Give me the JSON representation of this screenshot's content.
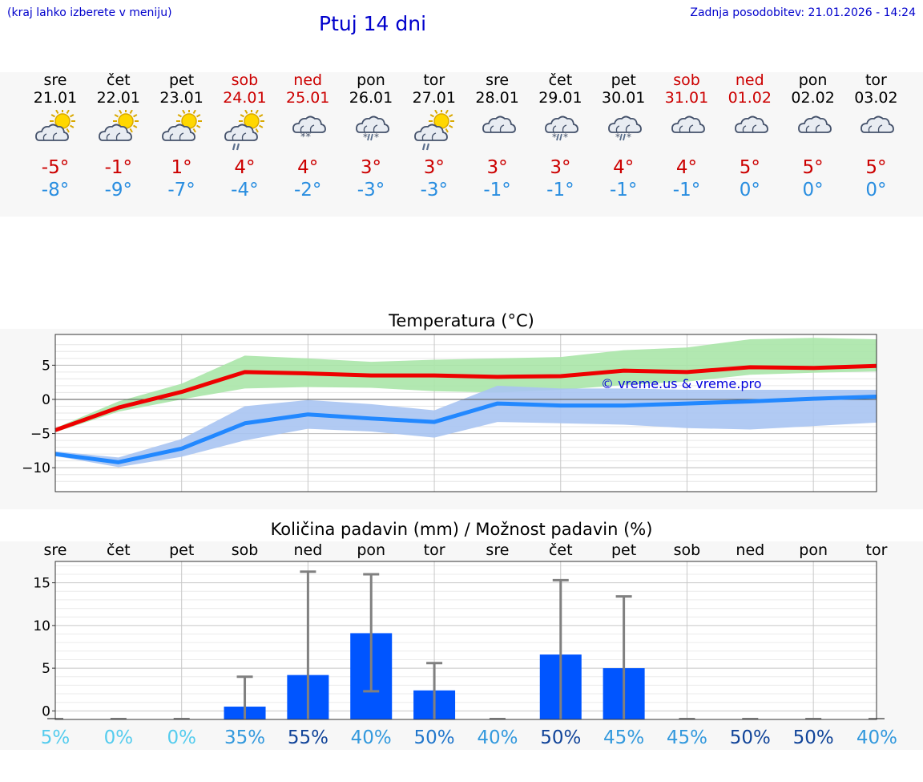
{
  "header": {
    "region_hint": "(kraj lahko izberete v meniju)",
    "title": "Ptuj 14 dni",
    "last_update": "Zadnja posodobitev: 21.01.2026 - 14:24"
  },
  "forecast": [
    {
      "day": "sre",
      "date": "21.01",
      "icon": "sun-cloud-icon",
      "max": "-5°",
      "min": "-8°",
      "weekend": false
    },
    {
      "day": "čet",
      "date": "22.01",
      "icon": "sun-cloud-icon",
      "max": "-1°",
      "min": "-9°",
      "weekend": false
    },
    {
      "day": "pet",
      "date": "23.01",
      "icon": "sun-cloud-icon",
      "max": "1°",
      "min": "-7°",
      "weekend": false
    },
    {
      "day": "sob",
      "date": "24.01",
      "icon": "sun-cloud-rain-icon",
      "max": "4°",
      "min": "-4°",
      "weekend": true
    },
    {
      "day": "ned",
      "date": "25.01",
      "icon": "cloud-snow-icon",
      "max": "4°",
      "min": "-2°",
      "weekend": true
    },
    {
      "day": "pon",
      "date": "26.01",
      "icon": "cloud-sleet-icon",
      "max": "3°",
      "min": "-3°",
      "weekend": false
    },
    {
      "day": "tor",
      "date": "27.01",
      "icon": "sun-cloud-rain-icon",
      "max": "3°",
      "min": "-3°",
      "weekend": false
    },
    {
      "day": "sre",
      "date": "28.01",
      "icon": "cloud-icon",
      "max": "3°",
      "min": "-1°",
      "weekend": false
    },
    {
      "day": "čet",
      "date": "29.01",
      "icon": "cloud-sleet-icon",
      "max": "3°",
      "min": "-1°",
      "weekend": false
    },
    {
      "day": "pet",
      "date": "30.01",
      "icon": "cloud-sleet-icon",
      "max": "4°",
      "min": "-1°",
      "weekend": false
    },
    {
      "day": "sob",
      "date": "31.01",
      "icon": "cloud-icon",
      "max": "4°",
      "min": "-1°",
      "weekend": true
    },
    {
      "day": "ned",
      "date": "01.02",
      "icon": "cloud-icon",
      "max": "5°",
      "min": "0°",
      "weekend": true
    },
    {
      "day": "pon",
      "date": "02.02",
      "icon": "cloud-icon",
      "max": "5°",
      "min": "0°",
      "weekend": false
    },
    {
      "day": "tor",
      "date": "03.02",
      "icon": "cloud-icon",
      "max": "5°",
      "min": "0°",
      "weekend": false
    }
  ],
  "chart_data": [
    {
      "type": "line",
      "title": "Temperatura (°C)",
      "watermark": "© vreme.us & vreme.pro",
      "x": [
        0,
        1,
        2,
        3,
        4,
        5,
        6,
        7,
        8,
        9,
        10,
        11,
        12,
        13
      ],
      "ylim": [
        -13.5,
        9.5
      ],
      "yticks": [
        5,
        0,
        -5,
        -10
      ],
      "ytick_labels": [
        "5",
        "0",
        "−5",
        "−10"
      ],
      "colors": {
        "max": "#ee0000",
        "min": "#2288ff",
        "max_band": "#aae6a8",
        "min_band": "#a9c4f2"
      },
      "series": [
        {
          "name": "max",
          "values": [
            -4.5,
            -1.2,
            1.1,
            4.0,
            3.8,
            3.5,
            3.5,
            3.3,
            3.4,
            4.2,
            4.0,
            4.7,
            4.6,
            4.9
          ]
        },
        {
          "name": "min",
          "values": [
            -8.0,
            -9.2,
            -7.2,
            -3.5,
            -2.2,
            -2.8,
            -3.3,
            -0.6,
            -0.9,
            -0.9,
            -0.6,
            -0.3,
            0.1,
            0.4
          ]
        },
        {
          "name": "max_band_upper",
          "values": [
            -4.2,
            -0.3,
            2.3,
            6.4,
            6.0,
            5.5,
            5.8,
            6.0,
            6.2,
            7.2,
            7.6,
            8.8,
            9.0,
            8.8
          ]
        },
        {
          "name": "max_band_lower",
          "values": [
            -4.8,
            -1.8,
            0.0,
            1.6,
            1.8,
            1.7,
            1.2,
            1.0,
            1.4,
            2.1,
            2.6,
            3.6,
            3.9,
            4.1
          ]
        },
        {
          "name": "min_band_upper",
          "values": [
            -7.6,
            -8.5,
            -5.8,
            -1.0,
            -0.1,
            -0.7,
            -1.6,
            2.0,
            1.6,
            1.6,
            1.4,
            1.4,
            1.4,
            1.4
          ]
        },
        {
          "name": "min_band_lower",
          "values": [
            -8.3,
            -9.9,
            -8.4,
            -6.0,
            -4.3,
            -4.7,
            -5.6,
            -3.3,
            -3.5,
            -3.7,
            -4.2,
            -4.4,
            -3.9,
            -3.4
          ]
        }
      ]
    },
    {
      "type": "bar",
      "title": "Količina padavin (mm) / Možnost padavin (%)",
      "categories": [
        "sre",
        "čet",
        "pet",
        "sob",
        "ned",
        "pon",
        "tor",
        "sre",
        "čet",
        "pet",
        "sob",
        "ned",
        "pon",
        "tor"
      ],
      "ylim": [
        -1,
        17.5
      ],
      "yticks": [
        15,
        10,
        5,
        0
      ],
      "ytick_labels": [
        "15",
        "10",
        "5",
        "0"
      ],
      "bar_color": "#0055ff",
      "values": [
        0,
        0,
        0,
        0.5,
        4.2,
        9.1,
        2.4,
        0,
        6.6,
        5.0,
        0,
        0,
        0,
        0
      ],
      "error_low": [
        0,
        0,
        0,
        0,
        0,
        2.3,
        0,
        0,
        0,
        0,
        0,
        0,
        0,
        0
      ],
      "error_high": [
        0,
        0,
        0,
        4.0,
        16.3,
        16.0,
        5.6,
        0,
        15.3,
        13.4,
        0,
        0,
        0,
        0
      ],
      "probability": [
        "5%",
        "0%",
        "0%",
        "35%",
        "55%",
        "40%",
        "50%",
        "40%",
        "50%",
        "45%",
        "45%",
        "50%",
        "50%",
        "40%"
      ],
      "probability_colors": [
        "#55ccee",
        "#55ccee",
        "#55ccee",
        "#3399dd",
        "#114499",
        "#3399dd",
        "#2277cc",
        "#3399dd",
        "#114499",
        "#3399dd",
        "#3399dd",
        "#114499",
        "#114499",
        "#3399dd"
      ]
    }
  ]
}
